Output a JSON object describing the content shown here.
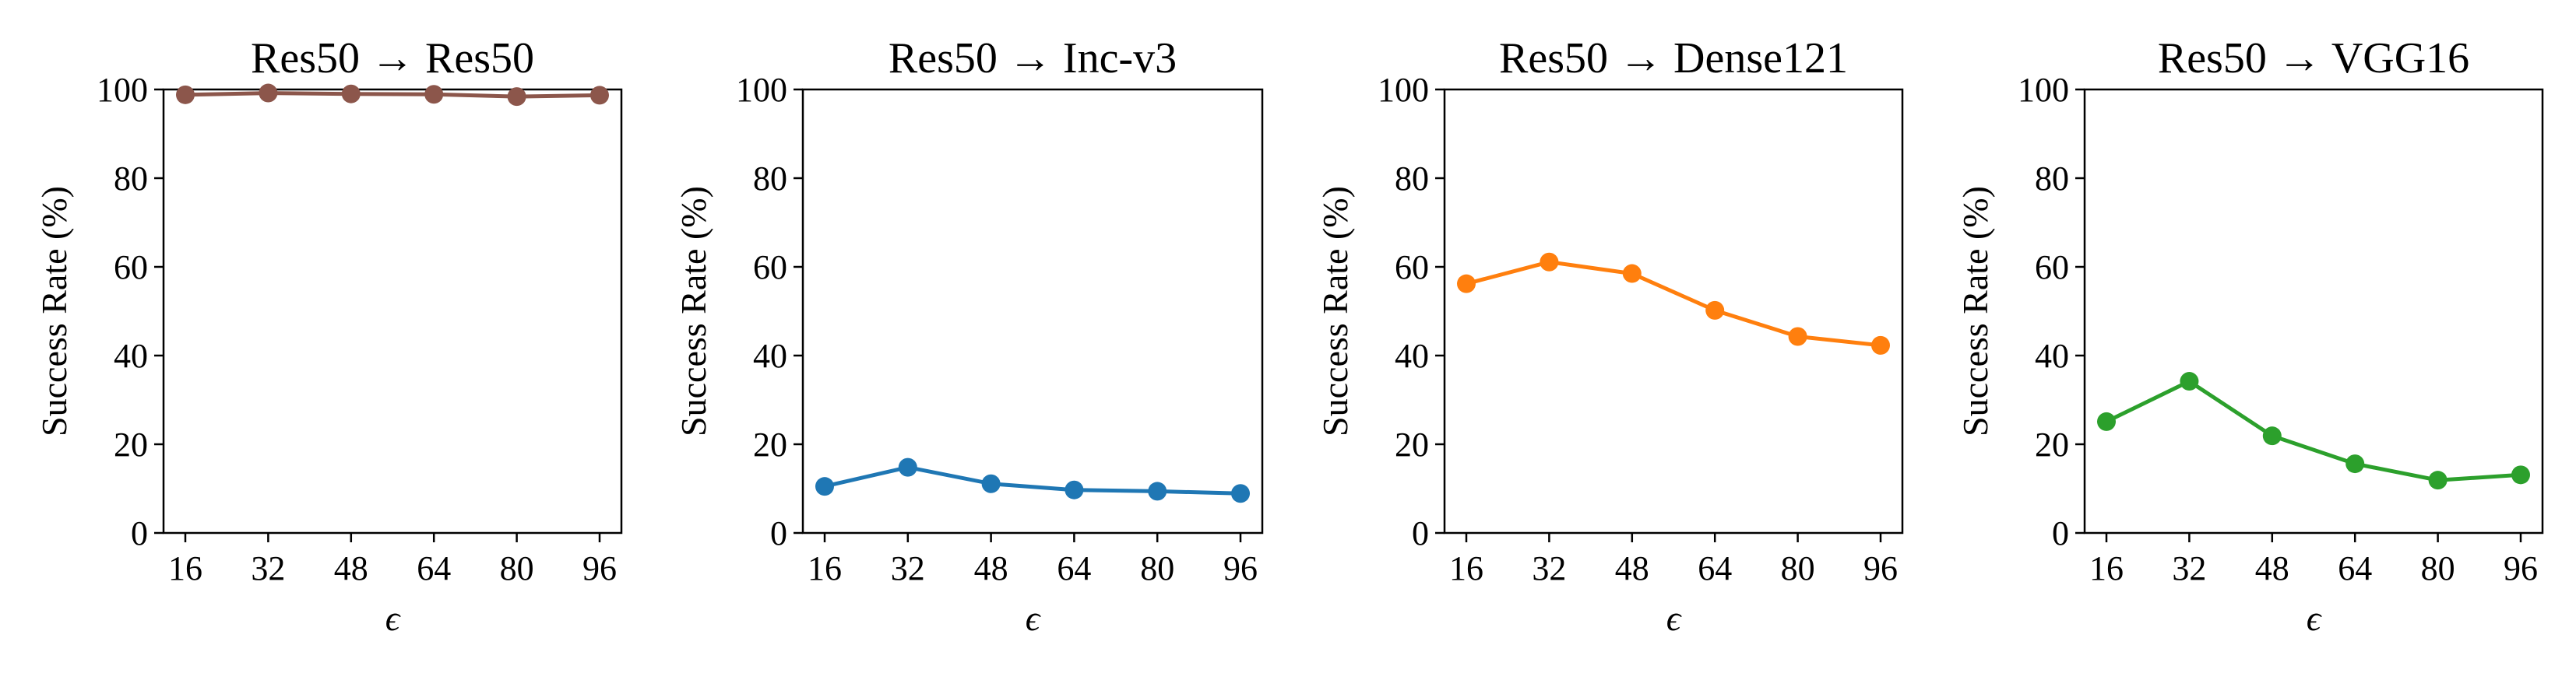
{
  "chart_data": [
    {
      "type": "line",
      "title": "Res50 → Res50",
      "xlabel": "ϵ",
      "ylabel": "Success Rate (%)",
      "categories": [
        "16",
        "32",
        "48",
        "64",
        "80",
        "96"
      ],
      "x": [
        16,
        32,
        48,
        64,
        80,
        96
      ],
      "values": [
        98.8,
        99.2,
        99.0,
        98.9,
        98.4,
        98.7
      ],
      "ylim": [
        0,
        100
      ],
      "yticks": [
        "0",
        "20",
        "40",
        "60",
        "80",
        "100"
      ],
      "color": "#8c564b",
      "grid": false
    },
    {
      "type": "line",
      "title": "Res50 → Inc-v3",
      "xlabel": "ϵ",
      "ylabel": "Success Rate (%)",
      "categories": [
        "16",
        "32",
        "48",
        "64",
        "80",
        "96"
      ],
      "x": [
        16,
        32,
        48,
        64,
        80,
        96
      ],
      "values": [
        10.5,
        14.8,
        11.1,
        9.7,
        9.4,
        8.9
      ],
      "ylim": [
        0,
        100
      ],
      "yticks": [
        "0",
        "20",
        "40",
        "60",
        "80",
        "100"
      ],
      "color": "#1f77b4",
      "grid": false
    },
    {
      "type": "line",
      "title": "Res50 → Dense121",
      "xlabel": "ϵ",
      "ylabel": "Success Rate (%)",
      "categories": [
        "16",
        "32",
        "48",
        "64",
        "80",
        "96"
      ],
      "x": [
        16,
        32,
        48,
        64,
        80,
        96
      ],
      "values": [
        56.2,
        61.1,
        58.5,
        50.2,
        44.3,
        42.3
      ],
      "ylim": [
        0,
        100
      ],
      "yticks": [
        "0",
        "20",
        "40",
        "60",
        "80",
        "100"
      ],
      "color": "#ff7f0e",
      "grid": false
    },
    {
      "type": "line",
      "title": "Res50 → VGG16",
      "xlabel": "ϵ",
      "ylabel": "Success Rate (%)",
      "categories": [
        "16",
        "32",
        "48",
        "64",
        "80",
        "96"
      ],
      "x": [
        16,
        32,
        48,
        64,
        80,
        96
      ],
      "values": [
        25.1,
        34.2,
        21.9,
        15.6,
        11.9,
        13.1
      ],
      "ylim": [
        0,
        100
      ],
      "yticks": [
        "0",
        "20",
        "40",
        "60",
        "80",
        "100"
      ],
      "color": "#2ca02c",
      "grid": false
    }
  ]
}
